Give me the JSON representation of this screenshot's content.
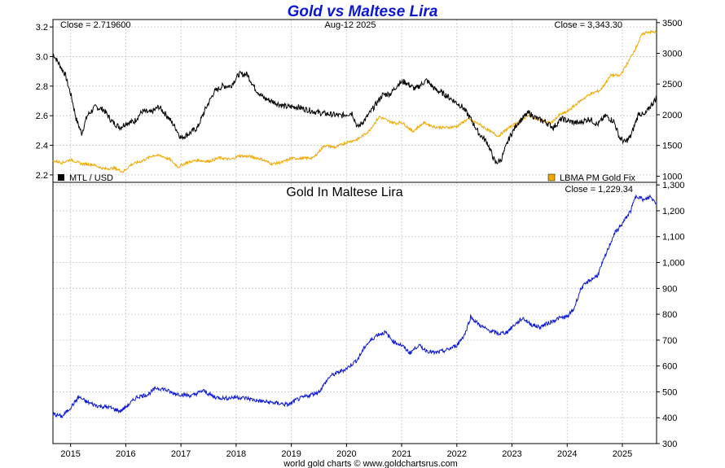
{
  "page": {
    "title": "Gold vs Maltese Lira",
    "credit": "world gold charts © www.goldchartsrus.com"
  },
  "chart_data": [
    {
      "type": "line",
      "panel": "top",
      "title": "Gold vs Maltese Lira",
      "date_label": "Aug-12  2025",
      "annotations": {
        "close_left": "Close = 2.719600",
        "close_right": "Close = 3,343.30"
      },
      "y_left": {
        "range": [
          2.15,
          3.25
        ],
        "ticks": [
          "2.2",
          "2.4",
          "2.6",
          "2.8",
          "3.0",
          "3.2"
        ]
      },
      "y_right": {
        "range": [
          900,
          3550
        ],
        "ticks": [
          "1000",
          "1500",
          "2000",
          "2500",
          "3000",
          "3500"
        ]
      },
      "x_range": [
        2014.68,
        2025.62
      ],
      "grid": true,
      "legend": "bottom",
      "series": [
        {
          "name": "MTL / USD",
          "axis": "left",
          "color": "#000000",
          "points": [
            [
              2014.68,
              3.02
            ],
            [
              2014.9,
              2.88
            ],
            [
              2015.02,
              2.72
            ],
            [
              2015.1,
              2.58
            ],
            [
              2015.2,
              2.48
            ],
            [
              2015.3,
              2.6
            ],
            [
              2015.45,
              2.66
            ],
            [
              2015.6,
              2.64
            ],
            [
              2015.75,
              2.56
            ],
            [
              2015.9,
              2.52
            ],
            [
              2016.0,
              2.55
            ],
            [
              2016.15,
              2.56
            ],
            [
              2016.3,
              2.63
            ],
            [
              2016.45,
              2.62
            ],
            [
              2016.6,
              2.66
            ],
            [
              2016.75,
              2.6
            ],
            [
              2016.9,
              2.52
            ],
            [
              2017.0,
              2.45
            ],
            [
              2017.15,
              2.48
            ],
            [
              2017.3,
              2.52
            ],
            [
              2017.45,
              2.65
            ],
            [
              2017.6,
              2.76
            ],
            [
              2017.75,
              2.8
            ],
            [
              2017.9,
              2.8
            ],
            [
              2018.05,
              2.88
            ],
            [
              2018.2,
              2.88
            ],
            [
              2018.35,
              2.78
            ],
            [
              2018.5,
              2.72
            ],
            [
              2018.7,
              2.69
            ],
            [
              2018.9,
              2.66
            ],
            [
              2019.1,
              2.66
            ],
            [
              2019.3,
              2.64
            ],
            [
              2019.5,
              2.62
            ],
            [
              2019.7,
              2.61
            ],
            [
              2019.9,
              2.6
            ],
            [
              2020.1,
              2.62
            ],
            [
              2020.2,
              2.52
            ],
            [
              2020.35,
              2.58
            ],
            [
              2020.5,
              2.66
            ],
            [
              2020.65,
              2.74
            ],
            [
              2020.8,
              2.75
            ],
            [
              2020.95,
              2.82
            ],
            [
              2021.05,
              2.83
            ],
            [
              2021.25,
              2.78
            ],
            [
              2021.45,
              2.84
            ],
            [
              2021.6,
              2.78
            ],
            [
              2021.8,
              2.74
            ],
            [
              2021.95,
              2.7
            ],
            [
              2022.1,
              2.66
            ],
            [
              2022.25,
              2.58
            ],
            [
              2022.4,
              2.48
            ],
            [
              2022.55,
              2.42
            ],
            [
              2022.7,
              2.28
            ],
            [
              2022.8,
              2.3
            ],
            [
              2022.95,
              2.45
            ],
            [
              2023.1,
              2.55
            ],
            [
              2023.3,
              2.62
            ],
            [
              2023.45,
              2.58
            ],
            [
              2023.6,
              2.56
            ],
            [
              2023.75,
              2.52
            ],
            [
              2023.9,
              2.58
            ],
            [
              2024.05,
              2.56
            ],
            [
              2024.2,
              2.55
            ],
            [
              2024.4,
              2.58
            ],
            [
              2024.55,
              2.54
            ],
            [
              2024.7,
              2.6
            ],
            [
              2024.85,
              2.56
            ],
            [
              2024.95,
              2.45
            ],
            [
              2025.05,
              2.42
            ],
            [
              2025.15,
              2.46
            ],
            [
              2025.3,
              2.62
            ],
            [
              2025.4,
              2.6
            ],
            [
              2025.5,
              2.66
            ],
            [
              2025.62,
              2.72
            ]
          ]
        },
        {
          "name": "LBMA PM Gold Fix",
          "axis": "right",
          "color": "#f0a800",
          "points": [
            [
              2014.68,
              1250
            ],
            [
              2014.85,
              1220
            ],
            [
              2015.0,
              1270
            ],
            [
              2015.2,
              1200
            ],
            [
              2015.4,
              1190
            ],
            [
              2015.6,
              1120
            ],
            [
              2015.8,
              1130
            ],
            [
              2015.95,
              1070
            ],
            [
              2016.1,
              1190
            ],
            [
              2016.3,
              1250
            ],
            [
              2016.5,
              1340
            ],
            [
              2016.65,
              1330
            ],
            [
              2016.8,
              1270
            ],
            [
              2016.95,
              1150
            ],
            [
              2017.1,
              1220
            ],
            [
              2017.3,
              1260
            ],
            [
              2017.5,
              1240
            ],
            [
              2017.7,
              1300
            ],
            [
              2017.9,
              1270
            ],
            [
              2018.05,
              1330
            ],
            [
              2018.25,
              1320
            ],
            [
              2018.45,
              1280
            ],
            [
              2018.65,
              1200
            ],
            [
              2018.85,
              1230
            ],
            [
              2019.0,
              1290
            ],
            [
              2019.2,
              1290
            ],
            [
              2019.4,
              1300
            ],
            [
              2019.6,
              1500
            ],
            [
              2019.8,
              1470
            ],
            [
              2020.0,
              1550
            ],
            [
              2020.2,
              1600
            ],
            [
              2020.4,
              1730
            ],
            [
              2020.6,
              1970
            ],
            [
              2020.75,
              1900
            ],
            [
              2020.9,
              1860
            ],
            [
              2021.0,
              1880
            ],
            [
              2021.2,
              1730
            ],
            [
              2021.4,
              1870
            ],
            [
              2021.6,
              1800
            ],
            [
              2021.8,
              1790
            ],
            [
              2022.0,
              1810
            ],
            [
              2022.2,
              1930
            ],
            [
              2022.4,
              1850
            ],
            [
              2022.6,
              1730
            ],
            [
              2022.75,
              1650
            ],
            [
              2022.9,
              1760
            ],
            [
              2023.1,
              1880
            ],
            [
              2023.3,
              1990
            ],
            [
              2023.5,
              1920
            ],
            [
              2023.7,
              1860
            ],
            [
              2023.85,
              1990
            ],
            [
              2024.0,
              2050
            ],
            [
              2024.2,
              2200
            ],
            [
              2024.4,
              2330
            ],
            [
              2024.6,
              2400
            ],
            [
              2024.8,
              2650
            ],
            [
              2024.95,
              2630
            ],
            [
              2025.1,
              2850
            ],
            [
              2025.25,
              3100
            ],
            [
              2025.35,
              3300
            ],
            [
              2025.45,
              3350
            ],
            [
              2025.62,
              3343
            ]
          ]
        }
      ]
    },
    {
      "type": "line",
      "panel": "bottom",
      "title": "Gold In Maltese Lira",
      "annotations": {
        "close_right": "Close = 1,229.34"
      },
      "y_right": {
        "range": [
          300,
          1310
        ],
        "ticks": [
          "300",
          "400",
          "500",
          "600",
          "700",
          "800",
          "900",
          "1,000",
          "1,100",
          "1,200",
          "1,300"
        ]
      },
      "x_range": [
        2014.68,
        2025.62
      ],
      "x_ticks": [
        "2015",
        "2016",
        "2017",
        "2018",
        "2019",
        "2020",
        "2021",
        "2022",
        "2023",
        "2024",
        "2025"
      ],
      "grid": true,
      "series": [
        {
          "name": "Gold In Maltese Lira",
          "color": "#0a17d6",
          "points": [
            [
              2014.68,
              415
            ],
            [
              2014.85,
              405
            ],
            [
              2015.0,
              440
            ],
            [
              2015.15,
              480
            ],
            [
              2015.3,
              460
            ],
            [
              2015.5,
              445
            ],
            [
              2015.7,
              440
            ],
            [
              2015.9,
              425
            ],
            [
              2016.05,
              450
            ],
            [
              2016.2,
              480
            ],
            [
              2016.4,
              490
            ],
            [
              2016.55,
              515
            ],
            [
              2016.7,
              510
            ],
            [
              2016.85,
              495
            ],
            [
              2017.0,
              490
            ],
            [
              2017.2,
              485
            ],
            [
              2017.4,
              505
            ],
            [
              2017.6,
              480
            ],
            [
              2017.8,
              475
            ],
            [
              2018.0,
              480
            ],
            [
              2018.2,
              475
            ],
            [
              2018.4,
              465
            ],
            [
              2018.6,
              460
            ],
            [
              2018.8,
              455
            ],
            [
              2018.95,
              450
            ],
            [
              2019.1,
              470
            ],
            [
              2019.3,
              485
            ],
            [
              2019.5,
              500
            ],
            [
              2019.7,
              560
            ],
            [
              2019.85,
              575
            ],
            [
              2020.0,
              590
            ],
            [
              2020.2,
              625
            ],
            [
              2020.35,
              680
            ],
            [
              2020.55,
              720
            ],
            [
              2020.7,
              730
            ],
            [
              2020.85,
              695
            ],
            [
              2021.0,
              680
            ],
            [
              2021.15,
              650
            ],
            [
              2021.3,
              680
            ],
            [
              2021.45,
              660
            ],
            [
              2021.6,
              650
            ],
            [
              2021.8,
              660
            ],
            [
              2022.0,
              680
            ],
            [
              2022.15,
              725
            ],
            [
              2022.25,
              790
            ],
            [
              2022.4,
              760
            ],
            [
              2022.55,
              740
            ],
            [
              2022.75,
              725
            ],
            [
              2022.9,
              730
            ],
            [
              2023.05,
              760
            ],
            [
              2023.2,
              785
            ],
            [
              2023.35,
              760
            ],
            [
              2023.5,
              750
            ],
            [
              2023.7,
              770
            ],
            [
              2023.85,
              785
            ],
            [
              2024.0,
              790
            ],
            [
              2024.12,
              820
            ],
            [
              2024.25,
              900
            ],
            [
              2024.4,
              930
            ],
            [
              2024.55,
              950
            ],
            [
              2024.7,
              1030
            ],
            [
              2024.85,
              1110
            ],
            [
              2025.0,
              1150
            ],
            [
              2025.15,
              1200
            ],
            [
              2025.25,
              1260
            ],
            [
              2025.4,
              1240
            ],
            [
              2025.5,
              1255
            ],
            [
              2025.62,
              1229
            ]
          ]
        }
      ]
    }
  ]
}
